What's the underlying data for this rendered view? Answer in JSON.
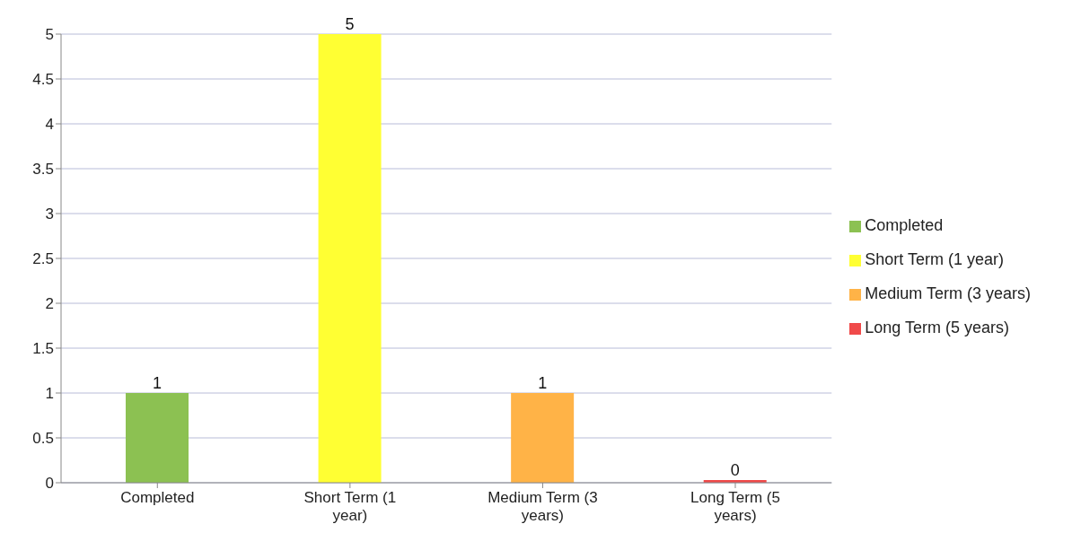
{
  "chart_data": {
    "type": "bar",
    "categories": [
      "Completed",
      "Short Term (1 year)",
      "Medium Term (3 years)",
      "Long Term (5 years)"
    ],
    "stacked": true,
    "series": [
      {
        "name": "Completed",
        "color": "#8cc152",
        "values": [
          1,
          null,
          null,
          null
        ]
      },
      {
        "name": "Short Term (1 year)",
        "color": "#ffff33",
        "values": [
          null,
          5,
          null,
          null
        ]
      },
      {
        "name": "Medium Term (3 years)",
        "color": "#ffb347",
        "values": [
          null,
          null,
          1,
          null
        ]
      },
      {
        "name": "Long Term (5 years)",
        "color": "#f04a4a",
        "values": [
          null,
          null,
          null,
          0
        ]
      }
    ],
    "ylim": [
      0,
      5
    ],
    "yticks": [
      0,
      0.5,
      1,
      1.5,
      2,
      2.5,
      3,
      3.5,
      4,
      4.5,
      5
    ],
    "grid": "y",
    "data_labels": true,
    "legend": "right"
  }
}
